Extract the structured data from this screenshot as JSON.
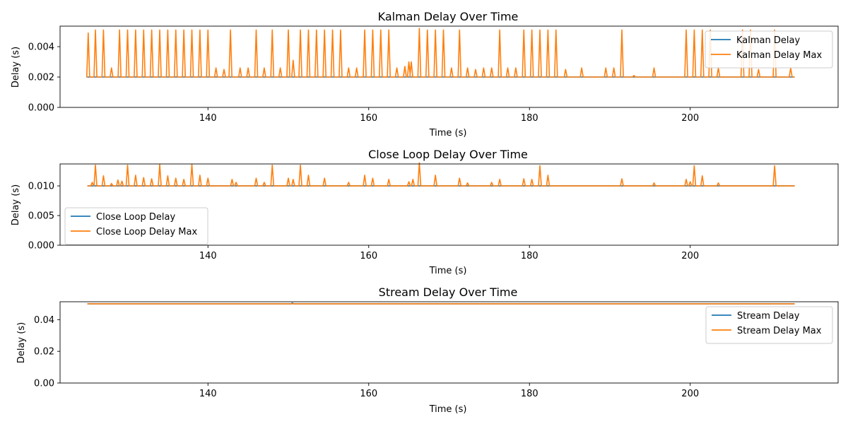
{
  "figure": {
    "background": "#ffffff",
    "series_colors": {
      "delay": "#1f77b4",
      "max": "#ff7f0e"
    }
  },
  "chart_data": [
    {
      "type": "line",
      "title": "Kalman Delay Over Time",
      "xlabel": "Time (s)",
      "ylabel": "Delay (s)",
      "xlim": [
        121.6,
        218.4
      ],
      "ylim": [
        0,
        0.00535
      ],
      "xticks": [
        140,
        160,
        180,
        200
      ],
      "xtick_labels": [
        "140",
        "160",
        "180",
        "200"
      ],
      "yticks": [
        0,
        0.002,
        0.004
      ],
      "ytick_labels": [
        "0.000",
        "0.002",
        "0.004"
      ],
      "legend_position": "top-right",
      "grid": false,
      "x_range": [
        125,
        213
      ],
      "series": [
        {
          "name": "Kalman Delay",
          "color": "#1f77b4",
          "base": 0.002,
          "spikes": []
        },
        {
          "name": "Kalman Delay Max",
          "color": "#ff7f0e",
          "base": 0.002,
          "spikes": [
            [
              125.1,
              0.0049
            ],
            [
              126.0,
              0.0051
            ],
            [
              127.0,
              0.0051
            ],
            [
              128.0,
              0.0026
            ],
            [
              129.0,
              0.0051
            ],
            [
              130.0,
              0.0051
            ],
            [
              131.0,
              0.0051
            ],
            [
              132.0,
              0.0051
            ],
            [
              133.0,
              0.0051
            ],
            [
              134.0,
              0.0051
            ],
            [
              135.0,
              0.0051
            ],
            [
              136.0,
              0.0051
            ],
            [
              137.0,
              0.0051
            ],
            [
              138.0,
              0.0051
            ],
            [
              139.0,
              0.0051
            ],
            [
              140.0,
              0.0051
            ],
            [
              141.0,
              0.0026
            ],
            [
              142.0,
              0.0025
            ],
            [
              142.8,
              0.0051
            ],
            [
              144.0,
              0.0026
            ],
            [
              145.0,
              0.0026
            ],
            [
              146.0,
              0.0051
            ],
            [
              147.0,
              0.0026
            ],
            [
              148.0,
              0.0051
            ],
            [
              149.0,
              0.0026
            ],
            [
              150.0,
              0.0051
            ],
            [
              150.6,
              0.0031
            ],
            [
              151.5,
              0.0051
            ],
            [
              152.5,
              0.0051
            ],
            [
              153.5,
              0.0051
            ],
            [
              154.5,
              0.0051
            ],
            [
              155.5,
              0.0051
            ],
            [
              156.5,
              0.0051
            ],
            [
              157.5,
              0.0026
            ],
            [
              158.5,
              0.0026
            ],
            [
              159.5,
              0.0051
            ],
            [
              160.5,
              0.0051
            ],
            [
              161.5,
              0.0051
            ],
            [
              162.5,
              0.0051
            ],
            [
              163.5,
              0.0026
            ],
            [
              164.5,
              0.0027
            ],
            [
              165.0,
              0.003
            ],
            [
              165.3,
              0.003
            ],
            [
              166.3,
              0.0052
            ],
            [
              167.3,
              0.0051
            ],
            [
              168.3,
              0.0051
            ],
            [
              169.3,
              0.0051
            ],
            [
              170.3,
              0.0026
            ],
            [
              171.3,
              0.0051
            ],
            [
              172.3,
              0.0026
            ],
            [
              173.3,
              0.0025
            ],
            [
              174.3,
              0.0026
            ],
            [
              175.3,
              0.0026
            ],
            [
              176.3,
              0.0051
            ],
            [
              177.3,
              0.0026
            ],
            [
              178.3,
              0.0026
            ],
            [
              179.3,
              0.0051
            ],
            [
              180.3,
              0.0051
            ],
            [
              181.3,
              0.0051
            ],
            [
              182.3,
              0.0051
            ],
            [
              183.3,
              0.0051
            ],
            [
              184.5,
              0.0025
            ],
            [
              186.5,
              0.0026
            ],
            [
              189.5,
              0.0026
            ],
            [
              190.5,
              0.0026
            ],
            [
              191.5,
              0.0051
            ],
            [
              193.0,
              0.0021
            ],
            [
              195.5,
              0.0026
            ],
            [
              199.5,
              0.0051
            ],
            [
              200.5,
              0.0051
            ],
            [
              201.5,
              0.0051
            ],
            [
              202.5,
              0.0051
            ],
            [
              203.5,
              0.0026
            ],
            [
              206.5,
              0.0051
            ],
            [
              207.5,
              0.0051
            ],
            [
              208.5,
              0.0025
            ],
            [
              210.5,
              0.0051
            ],
            [
              212.5,
              0.0026
            ]
          ]
        }
      ]
    },
    {
      "type": "line",
      "title": "Close Loop Delay Over Time",
      "xlabel": "Time (s)",
      "ylabel": "Delay (s)",
      "xlim": [
        121.6,
        218.4
      ],
      "ylim": [
        0,
        0.0137
      ],
      "xticks": [
        140,
        160,
        180,
        200
      ],
      "xtick_labels": [
        "140",
        "160",
        "180",
        "200"
      ],
      "yticks": [
        0,
        0.005,
        0.01
      ],
      "ytick_labels": [
        "0.000",
        "0.005",
        "0.010"
      ],
      "legend_position": "center-left",
      "grid": false,
      "x_range": [
        125,
        213
      ],
      "series": [
        {
          "name": "Close Loop Delay",
          "color": "#1f77b4",
          "base": 0.01,
          "spikes": []
        },
        {
          "name": "Close Loop Delay Max",
          "color": "#ff7f0e",
          "base": 0.01,
          "spikes": [
            [
              125.6,
              0.0106
            ],
            [
              126.0,
              0.0135
            ],
            [
              127.0,
              0.0117
            ],
            [
              128.0,
              0.0104
            ],
            [
              128.8,
              0.011
            ],
            [
              129.3,
              0.0108
            ],
            [
              130.0,
              0.0135
            ],
            [
              131.0,
              0.0118
            ],
            [
              132.0,
              0.0114
            ],
            [
              133.0,
              0.0112
            ],
            [
              134.0,
              0.0136
            ],
            [
              135.0,
              0.0117
            ],
            [
              136.0,
              0.0113
            ],
            [
              137.0,
              0.0111
            ],
            [
              138.0,
              0.0136
            ],
            [
              139.0,
              0.0118
            ],
            [
              140.0,
              0.0113
            ],
            [
              143.0,
              0.0111
            ],
            [
              143.5,
              0.0106
            ],
            [
              146.0,
              0.0113
            ],
            [
              147.0,
              0.0106
            ],
            [
              148.0,
              0.0135
            ],
            [
              150.0,
              0.0113
            ],
            [
              150.6,
              0.0111
            ],
            [
              151.5,
              0.0135
            ],
            [
              152.5,
              0.0118
            ],
            [
              154.5,
              0.0113
            ],
            [
              157.5,
              0.0106
            ],
            [
              159.5,
              0.0118
            ],
            [
              160.5,
              0.0113
            ],
            [
              162.5,
              0.0111
            ],
            [
              165.0,
              0.0107
            ],
            [
              165.5,
              0.0111
            ],
            [
              166.3,
              0.0139
            ],
            [
              168.3,
              0.0118
            ],
            [
              171.3,
              0.0113
            ],
            [
              172.3,
              0.0105
            ],
            [
              175.3,
              0.0106
            ],
            [
              176.3,
              0.0111
            ],
            [
              179.3,
              0.0112
            ],
            [
              180.3,
              0.0111
            ],
            [
              181.3,
              0.0134
            ],
            [
              182.3,
              0.0118
            ],
            [
              191.5,
              0.0112
            ],
            [
              195.5,
              0.0105
            ],
            [
              199.5,
              0.0111
            ],
            [
              200.0,
              0.0107
            ],
            [
              200.5,
              0.0134
            ],
            [
              201.5,
              0.0117
            ],
            [
              203.5,
              0.0105
            ],
            [
              210.5,
              0.0134
            ]
          ]
        }
      ]
    },
    {
      "type": "line",
      "title": "Stream Delay Over Time",
      "xlabel": "Time (s)",
      "ylabel": "Delay (s)",
      "xlim": [
        121.6,
        218.4
      ],
      "ylim": [
        0,
        0.0513
      ],
      "xticks": [
        140,
        160,
        180,
        200
      ],
      "xtick_labels": [
        "140",
        "160",
        "180",
        "200"
      ],
      "yticks": [
        0,
        0.02,
        0.04
      ],
      "ytick_labels": [
        "0.00",
        "0.02",
        "0.04"
      ],
      "legend_position": "top-right",
      "grid": false,
      "x_range": [
        125,
        213
      ],
      "series": [
        {
          "name": "Stream Delay",
          "color": "#1f77b4",
          "base": 0.05,
          "spikes": [
            [
              150.5,
              0.0505
            ]
          ]
        },
        {
          "name": "Stream Delay Max",
          "color": "#ff7f0e",
          "base": 0.05,
          "spikes": []
        }
      ]
    }
  ]
}
